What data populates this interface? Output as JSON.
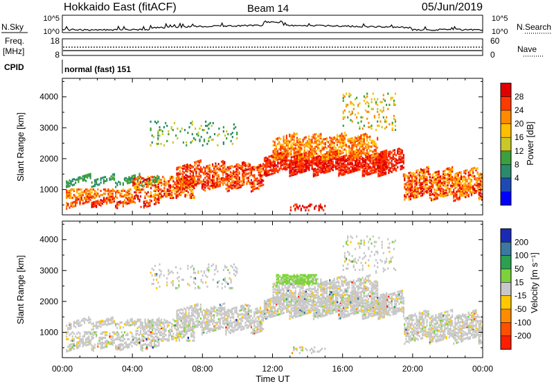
{
  "header": {
    "station": "Hokkaido East (fitACF)",
    "beam": "Beam 14",
    "date": "05/Jun/2019"
  },
  "noise_panel": {
    "left_label": "N.Sky",
    "right_label": "N.Search",
    "ticks": [
      "10^5",
      "10^0"
    ]
  },
  "freq_panel": {
    "left_label_line1": "Freq.",
    "left_label_line2": "[MHz]",
    "left_ticks": [
      "18",
      "8"
    ],
    "right_label": "Nave",
    "right_ticks": [
      "60",
      "0"
    ]
  },
  "cpid": {
    "label": "CPID",
    "mode": "normal (fast) 151"
  },
  "power_panel": {
    "ylabel": "Slant Range [km]",
    "colorbar_label": "Power [dB]",
    "colorbar_ticks": [
      "28",
      "24",
      "20",
      "16",
      "12",
      "8",
      "4"
    ],
    "colorbar_colors": [
      "#e00000",
      "#ff3a00",
      "#ff8a00",
      "#ffbe00",
      "#c8c828",
      "#3ca03c",
      "#2a8a6a",
      "#1e4ab4",
      "#0000ff"
    ]
  },
  "velocity_panel": {
    "ylabel": "Slant Range [km]",
    "colorbar_label": "Velocity [m s⁻¹]",
    "colorbar_ticks": [
      "200",
      "100",
      "50",
      "15",
      "-15",
      "-50",
      "-100",
      "-200"
    ],
    "colorbar_colors": [
      "#1a2ab4",
      "#3c78a0",
      "#2aa050",
      "#7cd23c",
      "#c8c8c8",
      "#ffc800",
      "#ff8c00",
      "#ff5000",
      "#ff1e00"
    ]
  },
  "chart_data": {
    "type": "heatmap",
    "xlabel": "Time UT",
    "x_ticks": [
      "00:00",
      "04:00",
      "08:00",
      "12:00",
      "16:00",
      "20:00",
      "00:00"
    ],
    "y_ticks_km": [
      "1000",
      "2000",
      "3000",
      "4000"
    ],
    "ylim_km": [
      180,
      4600
    ],
    "xlim_hours": [
      0,
      24
    ]
  }
}
